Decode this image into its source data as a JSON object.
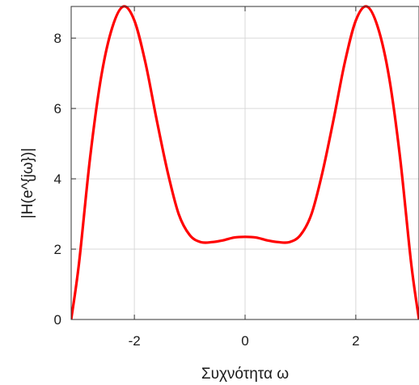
{
  "chart_data": {
    "type": "line",
    "title": "",
    "xlabel": "Συχνότητα ω",
    "ylabel": "|H(e^{jω})|",
    "xlim": [
      -3.14159,
      3.14159
    ],
    "ylim": [
      0,
      8.9
    ],
    "xticks": [
      -2,
      0,
      2
    ],
    "yticks": [
      0,
      2,
      4,
      6,
      8
    ],
    "grid": true,
    "series": [
      {
        "name": "",
        "color": "#ff0000",
        "x": [
          -3.14159,
          -3.0,
          -2.8,
          -2.6,
          -2.4,
          -2.2,
          -2.0,
          -1.8,
          -1.6,
          -1.4,
          -1.2,
          -1.0,
          -0.8,
          -0.6,
          -0.4,
          -0.2,
          0.0,
          0.2,
          0.4,
          0.6,
          0.8,
          1.0,
          1.2,
          1.4,
          1.6,
          1.8,
          2.0,
          2.2,
          2.4,
          2.6,
          2.8,
          3.0,
          3.14159
        ],
        "y": [
          0.0,
          1.6,
          4.6,
          6.9,
          8.3,
          8.9,
          8.5,
          7.3,
          5.7,
          4.2,
          3.0,
          2.4,
          2.2,
          2.2,
          2.25,
          2.33,
          2.35,
          2.33,
          2.25,
          2.2,
          2.2,
          2.4,
          3.0,
          4.2,
          5.7,
          7.3,
          8.5,
          8.9,
          8.3,
          6.9,
          4.6,
          1.6,
          0.0
        ]
      }
    ]
  }
}
